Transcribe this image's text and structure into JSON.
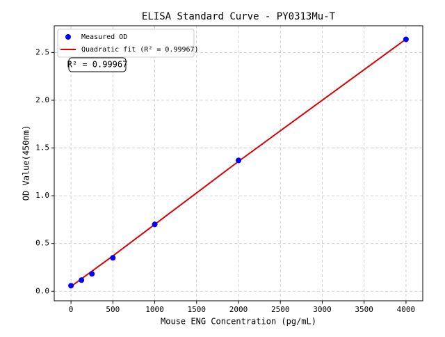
{
  "chart_data": {
    "type": "scatter",
    "title": "ELISA Standard Curve - PY0313Mu-T",
    "x_label": "Mouse ENG Concentration (pg/mL)",
    "y_label": "OD Value(450nm)",
    "annotation": "R² = 0.99967",
    "series": [
      {
        "name": "Measured OD",
        "color": "#0000ff",
        "kind": "points",
        "x": [
          0,
          125,
          250,
          500,
          1000,
          2000,
          4000
        ],
        "values": [
          0.058,
          0.117,
          0.182,
          0.35,
          0.7,
          1.37,
          2.638
        ]
      },
      {
        "name": "Quadratic fit (R² = 0.99967)",
        "color": "#dd0000",
        "kind": "line",
        "x": [
          0,
          500,
          1000,
          1500,
          2000,
          2500,
          3000,
          3500,
          4000
        ],
        "values": [
          0.05,
          0.37,
          0.7,
          1.03,
          1.36,
          1.68,
          2.0,
          2.32,
          2.64
        ]
      }
    ],
    "xlim": [
      -200,
      4200
    ],
    "ylim": [
      -0.1,
      2.78
    ],
    "xticks": [
      0,
      500,
      1000,
      1500,
      2000,
      2500,
      3000,
      3500,
      4000
    ],
    "yticks": [
      {
        "value": 0,
        "label": "0.0"
      },
      0.5,
      {
        "value": 1,
        "label": "1.0"
      },
      1.5,
      {
        "value": 2,
        "label": "2.0"
      },
      2.5
    ],
    "grid": true,
    "legend": "upper left"
  }
}
